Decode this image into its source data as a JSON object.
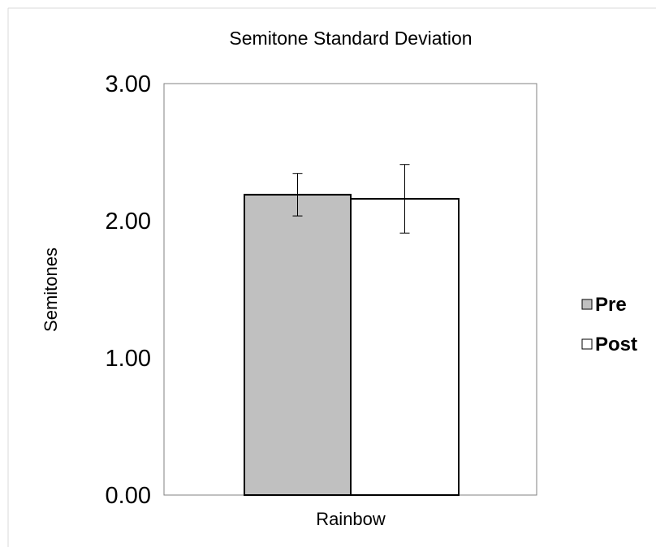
{
  "chart_data": {
    "type": "bar",
    "title": "Semitone Standard Deviation",
    "ylabel": "Semitones",
    "xlabel": "",
    "categories": [
      "Rainbow"
    ],
    "ylim": [
      0,
      3
    ],
    "yticks": [
      "0.00",
      "1.00",
      "2.00",
      "3.00"
    ],
    "grid": false,
    "legend_position": "right",
    "series": [
      {
        "name": "Pre",
        "values": [
          2.19
        ],
        "error": [
          0.155
        ],
        "color": "#c0c0c0"
      },
      {
        "name": "Post",
        "values": [
          2.16
        ],
        "error": [
          0.25
        ],
        "color": "#ffffff"
      }
    ]
  }
}
